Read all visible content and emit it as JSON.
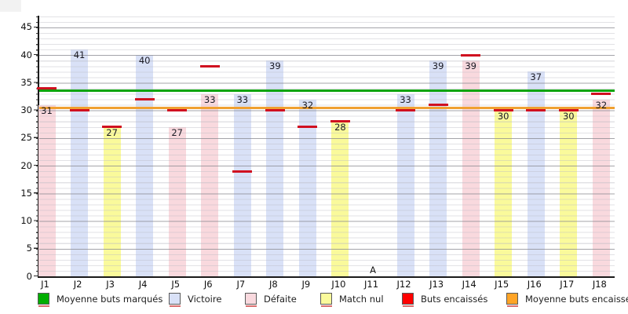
{
  "chart_data": {
    "type": "bar",
    "title": "",
    "xlabel": "",
    "ylabel": "",
    "categories": [
      "J1",
      "J2",
      "J3",
      "J4",
      "J5",
      "J6",
      "J7",
      "J8",
      "J9",
      "J10",
      "J11",
      "J12",
      "J13",
      "J14",
      "J15",
      "J16",
      "J17",
      "J18"
    ],
    "series": [
      {
        "name": "Buts marqués",
        "values": [
          31,
          41,
          27,
          40,
          27,
          33,
          33,
          39,
          32,
          28,
          null,
          33,
          39,
          39,
          30,
          37,
          30,
          32
        ],
        "results": [
          "defaite",
          "victoire",
          "nul",
          "victoire",
          "defaite",
          "defaite",
          "victoire",
          "victoire",
          "victoire",
          "nul",
          null,
          "victoire",
          "victoire",
          "defaite",
          "nul",
          "victoire",
          "nul",
          "defaite"
        ]
      },
      {
        "name": "Buts encaissés",
        "values": [
          34,
          30,
          27,
          32,
          30,
          38,
          19,
          30,
          27,
          28,
          null,
          30,
          31,
          40,
          30,
          30,
          30,
          33
        ]
      }
    ],
    "reference_lines": [
      {
        "name": "Moyenne buts marqués",
        "value": 33.6,
        "color": "#0CA40C"
      },
      {
        "name": "Moyenne buts encaissés",
        "value": 30.5,
        "color": "#F0A030"
      }
    ],
    "annotations": [
      {
        "category": "J11",
        "text": "A"
      }
    ],
    "ylim": [
      0,
      47
    ],
    "yticks": [
      0,
      5,
      10,
      15,
      20,
      25,
      30,
      35,
      40,
      45
    ],
    "grid": "minor every 1, major every 5",
    "legend_position": "bottom"
  },
  "colors": {
    "victoire": "#D9E1F7",
    "defaite": "#F9D9DE",
    "nul": "#FAFA9B",
    "marker_red": "#D01020",
    "avg_green": "#0CA40C",
    "avg_orange": "#F0A030"
  },
  "legend": {
    "items": [
      {
        "label": "Moyenne buts marqués",
        "swatch": "green-swatch",
        "color": "#00AE00"
      },
      {
        "label": "Victoire",
        "swatch": "blue-swatch",
        "color": "#D9E1F7"
      },
      {
        "label": "Défaite",
        "swatch": "pink-swatch",
        "color": "#F9D9DE"
      },
      {
        "label": "Match nul",
        "swatch": "yellow-swatch",
        "color": "#FAFA9B"
      },
      {
        "label": "Buts encaissés",
        "swatch": "red-swatch",
        "color": "#FF0000"
      },
      {
        "label": "Moyenne buts encaissés",
        "swatch": "orange-swatch",
        "color": "#FFA426"
      }
    ]
  }
}
